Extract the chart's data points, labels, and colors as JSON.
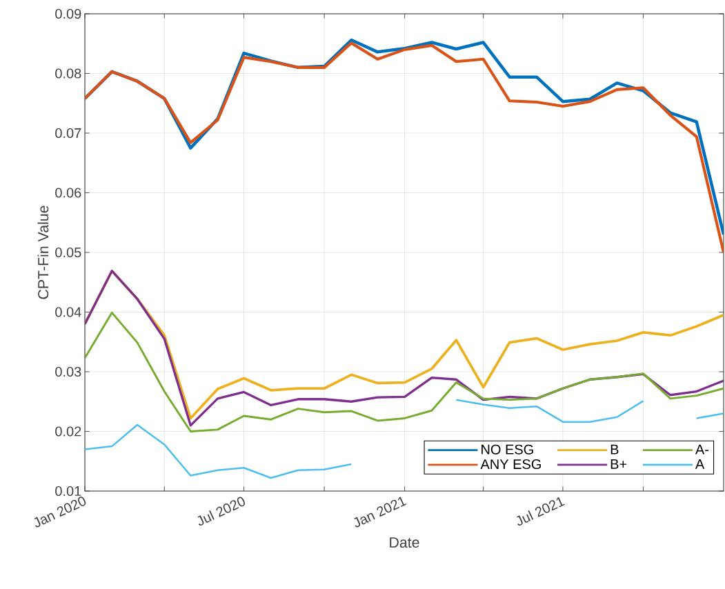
{
  "chart_data": {
    "type": "line",
    "xlabel": "Date",
    "ylabel": "CPT-Fin Value",
    "x": [
      "2020-01",
      "2020-02",
      "2020-03",
      "2020-04",
      "2020-05",
      "2020-06",
      "2020-07",
      "2020-08",
      "2020-09",
      "2020-10",
      "2020-11",
      "2020-12",
      "2021-01",
      "2021-02",
      "2021-03",
      "2021-04",
      "2021-05",
      "2021-06",
      "2021-07",
      "2021-08",
      "2021-09",
      "2021-10",
      "2021-11",
      "2021-12",
      "2022-01"
    ],
    "xlim": [
      "2020-01",
      "2022-01"
    ],
    "xticks": [
      {
        "value": "2020-01",
        "label": "Jan 2020"
      },
      {
        "value": "2020-04",
        "label": null
      },
      {
        "value": "2020-07",
        "label": "Jul 2020"
      },
      {
        "value": "2020-10",
        "label": null
      },
      {
        "value": "2021-01",
        "label": "Jan 2021"
      },
      {
        "value": "2021-04",
        "label": null
      },
      {
        "value": "2021-07",
        "label": "Jul 2021"
      },
      {
        "value": "2021-10",
        "label": null
      }
    ],
    "ylim": [
      0.01,
      0.09
    ],
    "yticks": [
      0.01,
      0.02,
      0.03,
      0.04,
      0.05,
      0.06,
      0.07,
      0.08,
      0.09
    ],
    "grid": true,
    "legend": "bottom right",
    "marker": "none",
    "line_style": "solid",
    "series": [
      {
        "name": "NO ESG",
        "color": "#0072bd",
        "values": [
          0.0758,
          0.0803,
          0.0787,
          0.0758,
          0.0675,
          0.0724,
          0.0834,
          0.0821,
          0.081,
          0.0812,
          0.0856,
          0.0836,
          0.0842,
          0.0852,
          0.0841,
          0.0852,
          0.0794,
          0.0794,
          0.0753,
          0.0757,
          0.0784,
          0.0771,
          0.0734,
          0.0719,
          0.053
        ]
      },
      {
        "name": "ANY ESG",
        "color": "#d95319",
        "values": [
          0.0758,
          0.0803,
          0.0787,
          0.0758,
          0.0684,
          0.0722,
          0.0827,
          0.082,
          0.081,
          0.081,
          0.0851,
          0.0824,
          0.084,
          0.0847,
          0.082,
          0.0824,
          0.0754,
          0.0752,
          0.0745,
          0.0753,
          0.0773,
          0.0776,
          0.073,
          0.0694,
          0.05
        ]
      },
      {
        "name": "B",
        "color": "#edb120",
        "values": [
          0.038,
          0.0469,
          0.0422,
          0.0361,
          0.0222,
          0.0271,
          0.0289,
          0.0269,
          0.0272,
          0.0272,
          0.0295,
          0.0281,
          0.0282,
          0.0305,
          0.0353,
          0.0274,
          0.0349,
          0.0356,
          0.0337,
          0.0346,
          0.0352,
          0.0366,
          0.0361,
          0.0376,
          0.0395
        ]
      },
      {
        "name": "B+",
        "color": "#7e2f8e",
        "values": [
          0.038,
          0.0469,
          0.0422,
          0.0355,
          0.021,
          0.0255,
          0.0266,
          0.0244,
          0.0254,
          0.0254,
          0.025,
          0.0257,
          0.0258,
          0.029,
          0.0287,
          0.0253,
          0.0258,
          0.0255,
          0.0272,
          0.0287,
          0.0291,
          0.0296,
          0.0261,
          0.0267,
          0.0285
        ]
      },
      {
        "name": "A-",
        "color": "#77ac30",
        "values": [
          0.0323,
          0.0399,
          0.0349,
          0.0267,
          0.02,
          0.0203,
          0.0226,
          0.022,
          0.0238,
          0.0232,
          0.0234,
          0.0218,
          0.0222,
          0.0235,
          0.0282,
          0.0255,
          0.0253,
          0.0255,
          0.0272,
          0.0287,
          0.0291,
          0.0297,
          0.0255,
          0.026,
          0.0272
        ]
      },
      {
        "name": "A",
        "color": "#4dbeee",
        "values": [
          0.017,
          0.0175,
          0.0211,
          0.0178,
          0.0126,
          0.0135,
          0.0139,
          0.0122,
          0.0135,
          0.0136,
          0.0145,
          null,
          null,
          null,
          0.0253,
          0.0245,
          0.0239,
          0.0242,
          0.0216,
          0.0216,
          0.0224,
          0.0251,
          null,
          0.0222,
          0.023
        ]
      }
    ]
  }
}
